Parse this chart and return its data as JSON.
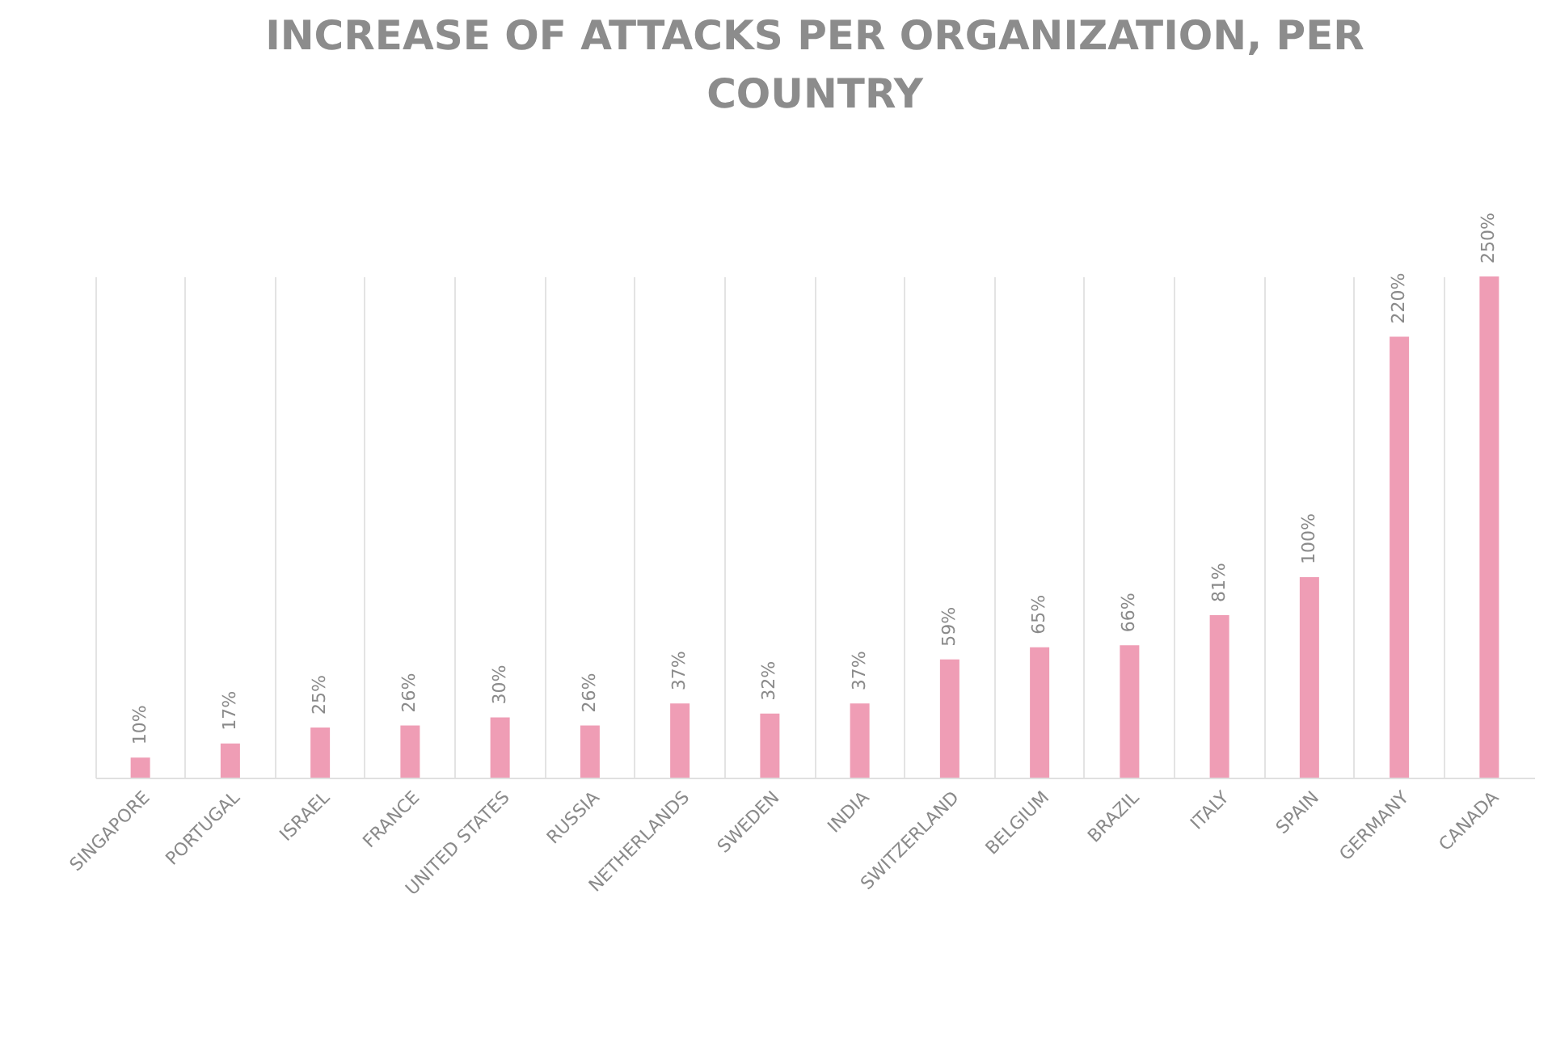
{
  "chart_data": {
    "type": "bar",
    "title": "INCREASE OF ATTACKS PER ORGANIZATION, PER COUNTRY",
    "categories": [
      "SINGAPORE",
      "PORTUGAL",
      "ISRAEL",
      "FRANCE",
      "UNITED STATES",
      "RUSSIA",
      "NETHERLANDS",
      "SWEDEN",
      "INDIA",
      "SWITZERLAND",
      "BELGIUM",
      "BRAZIL",
      "ITALY",
      "SPAIN",
      "GERMANY",
      "CANADA"
    ],
    "values": [
      10,
      17,
      25,
      26,
      30,
      26,
      37,
      32,
      37,
      59,
      65,
      66,
      81,
      100,
      220,
      250
    ],
    "value_labels": [
      "10%",
      "17%",
      "25%",
      "26%",
      "30%",
      "26%",
      "37%",
      "32%",
      "37%",
      "59%",
      "65%",
      "66%",
      "81%",
      "100%",
      "220%",
      "250%"
    ],
    "color": "#ef9db5",
    "grid": "x"
  }
}
